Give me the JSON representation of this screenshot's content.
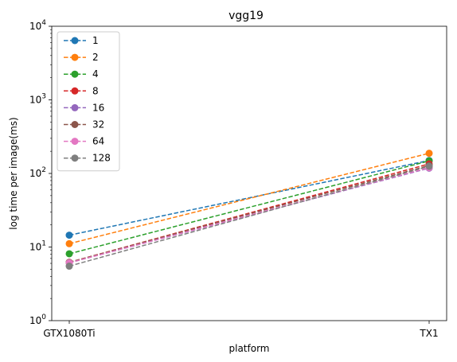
{
  "chart_data": {
    "type": "line",
    "title": "vgg19",
    "xlabel": "platform",
    "ylabel": "log time per image(ms)",
    "yscale": "log",
    "ylim": [
      1,
      10000
    ],
    "categories": [
      "GTX1080Ti",
      "TX1"
    ],
    "y_ticks": [
      {
        "value": 1,
        "base": "10",
        "exp": "0"
      },
      {
        "value": 10,
        "base": "10",
        "exp": "1"
      },
      {
        "value": 100,
        "base": "10",
        "exp": "2"
      },
      {
        "value": 1000,
        "base": "10",
        "exp": "3"
      },
      {
        "value": 10000,
        "base": "10",
        "exp": "4"
      }
    ],
    "grid": false,
    "legend_position": "top-left",
    "line_style": "dashed",
    "marker": "circle",
    "series": [
      {
        "name": "1",
        "color": "#1f77b4",
        "values": [
          14.5,
          150
        ]
      },
      {
        "name": "2",
        "color": "#ff7f0e",
        "values": [
          11.1,
          188
        ]
      },
      {
        "name": "4",
        "color": "#2ca02c",
        "values": [
          8.1,
          148
        ]
      },
      {
        "name": "8",
        "color": "#d62728",
        "values": [
          6.2,
          135
        ]
      },
      {
        "name": "16",
        "color": "#9467bd",
        "values": [
          6.1,
          118
        ]
      },
      {
        "name": "32",
        "color": "#8c564b",
        "values": [
          6.2,
          128
        ]
      },
      {
        "name": "64",
        "color": "#e377c2",
        "values": [
          6.1,
          120
        ]
      },
      {
        "name": "128",
        "color": "#7f7f7f",
        "values": [
          5.5,
          125
        ]
      }
    ]
  }
}
